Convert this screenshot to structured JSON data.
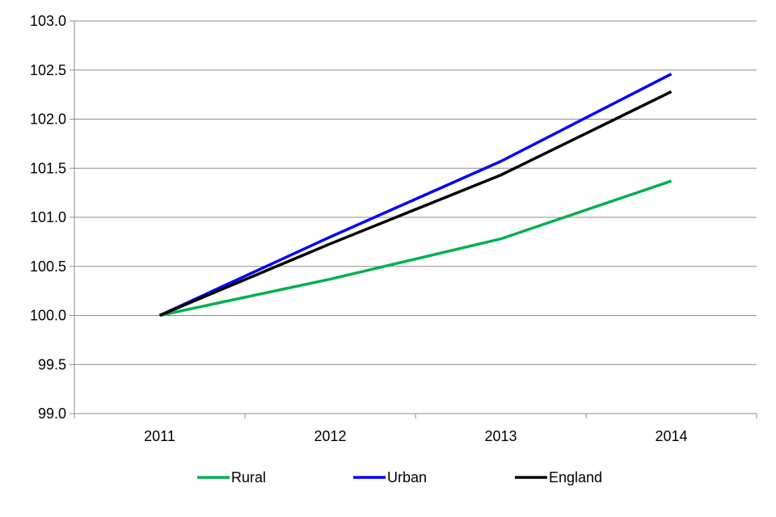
{
  "chart_data": {
    "type": "line",
    "title": "",
    "xlabel": "",
    "ylabel": "",
    "categories": [
      "2011",
      "2012",
      "2013",
      "2014"
    ],
    "ylim": [
      99.0,
      103.0
    ],
    "ytick_labels": [
      "99.0",
      "99.5",
      "100.0",
      "100.5",
      "101.0",
      "101.5",
      "102.0",
      "102.5",
      "103.0"
    ],
    "grid": true,
    "legend_position": "bottom",
    "series": [
      {
        "name": "Rural",
        "color": "#00b050",
        "values": [
          100.0,
          100.37,
          100.78,
          101.37
        ]
      },
      {
        "name": "Urban",
        "color": "#0000ff",
        "values": [
          100.0,
          100.8,
          101.57,
          102.46
        ]
      },
      {
        "name": "England",
        "color": "#000000",
        "values": [
          100.0,
          100.73,
          101.43,
          102.28
        ]
      }
    ]
  }
}
